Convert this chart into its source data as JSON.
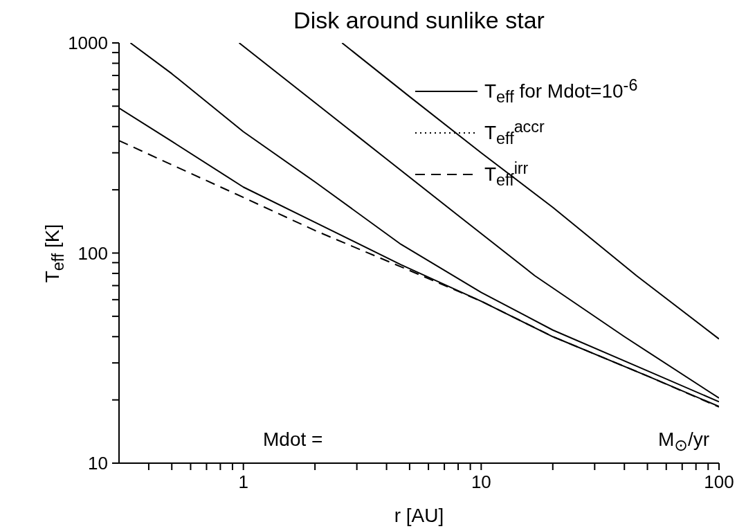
{
  "chart_data": {
    "type": "line",
    "title": "Disk around sunlike star",
    "xlabel": "r [AU]",
    "ylabel": "T$_{eff}$ [K]",
    "log": "xy",
    "xlim": [
      0.3,
      100
    ],
    "ylim": [
      10,
      1000
    ],
    "xticks": [
      {
        "value": 0.4,
        "label": null
      },
      {
        "value": 0.5,
        "label": null
      },
      {
        "value": 0.6,
        "label": null
      },
      {
        "value": 0.7,
        "label": null
      },
      {
        "value": 0.8,
        "label": null
      },
      {
        "value": 0.9,
        "label": null
      },
      1,
      {
        "value": 2,
        "label": null
      },
      {
        "value": 3,
        "label": null
      },
      {
        "value": 4,
        "label": null
      },
      {
        "value": 5,
        "label": null
      },
      {
        "value": 6,
        "label": null
      },
      {
        "value": 7,
        "label": null
      },
      {
        "value": 8,
        "label": null
      },
      {
        "value": 9,
        "label": null
      },
      10,
      {
        "value": 20,
        "label": null
      },
      {
        "value": 30,
        "label": null
      },
      {
        "value": 40,
        "label": null
      },
      {
        "value": 50,
        "label": null
      },
      {
        "value": 60,
        "label": null
      },
      {
        "value": 70,
        "label": null
      },
      {
        "value": 80,
        "label": null
      },
      {
        "value": 90,
        "label": null
      },
      100
    ],
    "yticks": [
      10,
      {
        "value": 20,
        "label": null
      },
      {
        "value": 30,
        "label": null
      },
      {
        "value": 40,
        "label": null
      },
      {
        "value": 50,
        "label": null
      },
      {
        "value": 60,
        "label": null
      },
      {
        "value": 70,
        "label": null
      },
      {
        "value": 80,
        "label": null
      },
      {
        "value": 90,
        "label": null
      },
      100,
      {
        "value": 200,
        "label": null
      },
      {
        "value": 300,
        "label": null
      },
      {
        "value": 400,
        "label": null
      },
      {
        "value": 500,
        "label": null
      },
      {
        "value": 600,
        "label": null
      },
      {
        "value": 700,
        "label": null
      },
      {
        "value": 800,
        "label": null
      },
      {
        "value": 900,
        "label": null
      },
      1000
    ],
    "legend": "top right",
    "marker": "none",
    "series": [
      {
        "name": "T$_{eff}$ for Mdot=10$^{-6}$",
        "color": "#000000",
        "line_style": "solid",
        "x": [
          2.6,
          5,
          10,
          20,
          45,
          100
        ],
        "values": [
          1000,
          555,
          300,
          165,
          78,
          39
        ]
      },
      {
        "color": "#000000",
        "line_style": "solid",
        "x": [
          0.96,
          2,
          4,
          8,
          16.8,
          40,
          100
        ],
        "values": [
          1000,
          520,
          280,
          151,
          78,
          40,
          20.4
        ]
      },
      {
        "color": "#000000",
        "line_style": "solid",
        "x": [
          0.335,
          0.5,
          1,
          2,
          4.6,
          10,
          20,
          50,
          100
        ],
        "values": [
          1000,
          714,
          378,
          218,
          110,
          65,
          43,
          27.5,
          19.6
        ]
      },
      {
        "color": "#000000",
        "line_style": "solid",
        "x": [
          0.3,
          0.5,
          1,
          2,
          4.6,
          10,
          20,
          50,
          100
        ],
        "values": [
          490,
          340,
          206,
          140,
          88,
          59,
          40,
          26,
          18.6
        ]
      },
      {
        "name": "T$_{eff}$$^{accr}$",
        "color": "#000000",
        "line_style": "dotted"
      },
      {
        "name": "T$_{eff}$$^{irr}$",
        "color": "#000000",
        "line_style": "dashed",
        "x": [
          0.3,
          0.5,
          1,
          2,
          4.6,
          10,
          20,
          50,
          100
        ],
        "values": [
          343,
          263,
          184,
          128,
          86,
          59,
          40,
          26,
          18.5
        ]
      }
    ],
    "annotations": [
      "Mdot =",
      "M$_{⊙}$/yr"
    ]
  }
}
